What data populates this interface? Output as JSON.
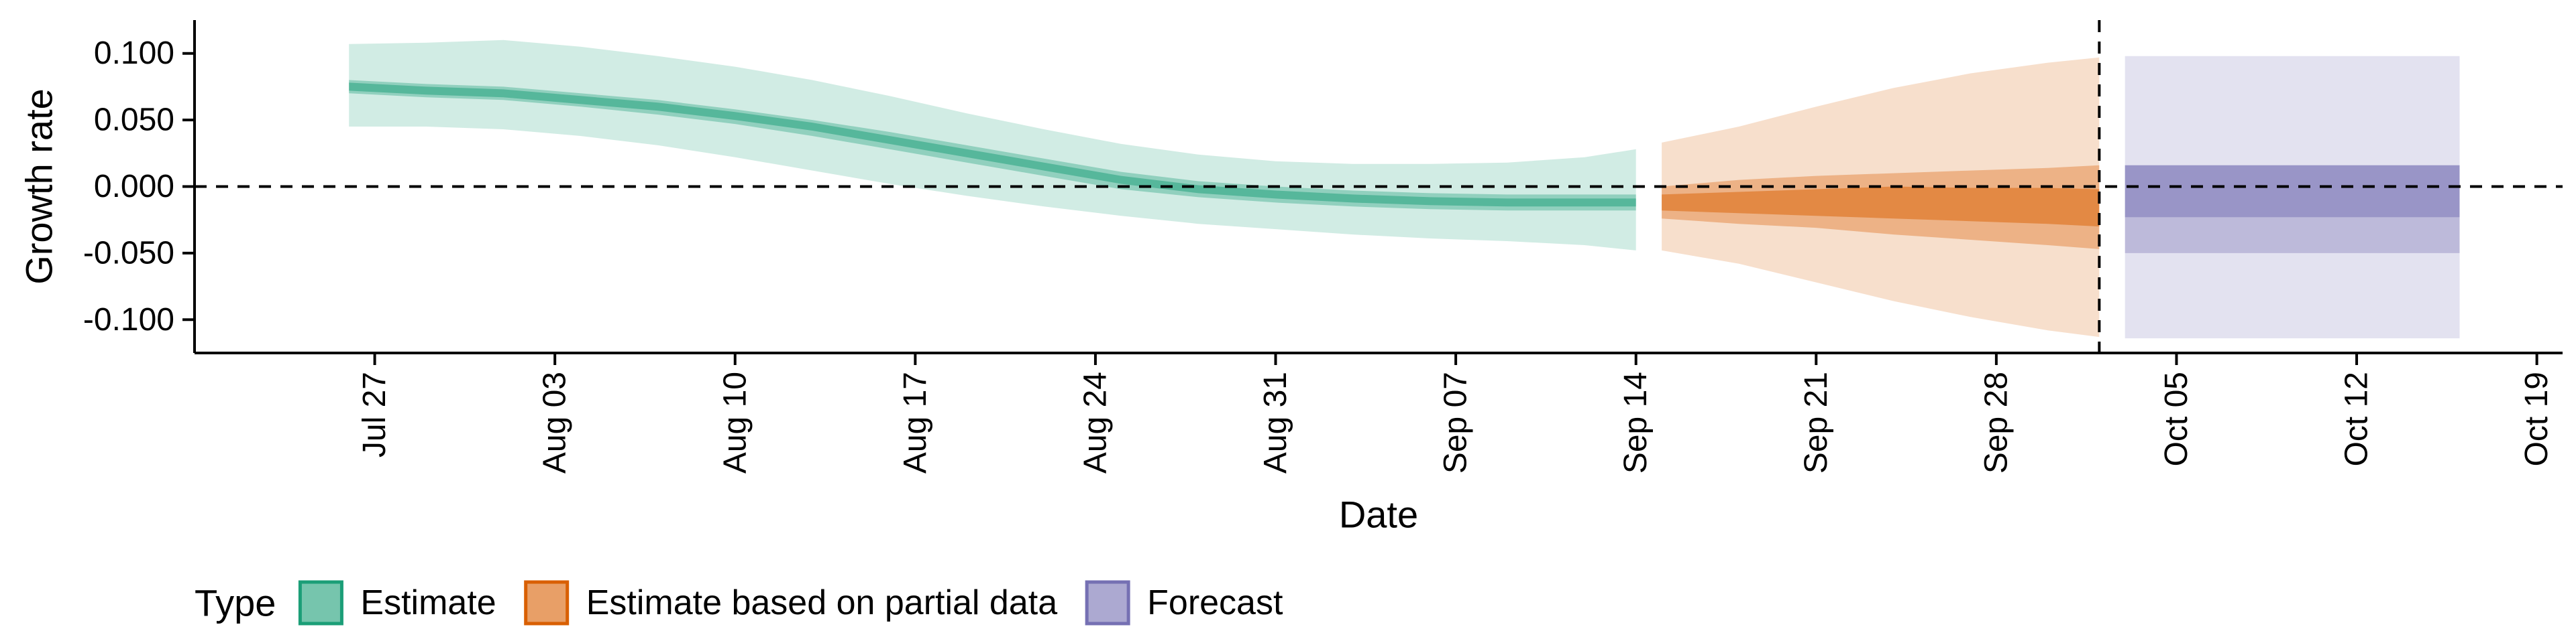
{
  "chart_data": {
    "type": "area",
    "xlabel": "Date",
    "ylabel": "Growth rate",
    "ylim": [
      -0.125,
      0.125
    ],
    "xlim": [
      "2020-07-20",
      "2020-10-20"
    ],
    "y_ticks": [
      0.1,
      0.05,
      0.0,
      -0.05,
      -0.1
    ],
    "y_tick_labels": [
      "0.100",
      "0.050",
      "0.000",
      "-0.050",
      "-0.100"
    ],
    "x_ticks": [
      "2020-07-27",
      "2020-08-03",
      "2020-08-10",
      "2020-08-17",
      "2020-08-24",
      "2020-08-31",
      "2020-09-07",
      "2020-09-14",
      "2020-09-21",
      "2020-09-28",
      "2020-10-05",
      "2020-10-12",
      "2020-10-19"
    ],
    "x_tick_labels": [
      "Jul 27",
      "Aug 03",
      "Aug 10",
      "Aug 17",
      "Aug 24",
      "Aug 31",
      "Sep 07",
      "Sep 14",
      "Sep 21",
      "Sep 28",
      "Oct 05",
      "Oct 12",
      "Oct 19"
    ],
    "reference_lines": {
      "horizontal_y": 0.0,
      "vertical_date": "2020-10-02"
    },
    "legend": {
      "title": "Type",
      "position": "bottom",
      "entries": [
        {
          "label": "Estimate",
          "color": "#1b9e77"
        },
        {
          "label": "Estimate based on partial data",
          "color": "#d95f02"
        },
        {
          "label": "Forecast",
          "color": "#7570b3"
        }
      ]
    },
    "series": [
      {
        "name": "Estimate",
        "color": "#1b9e77",
        "dates": [
          "2020-07-26",
          "2020-07-29",
          "2020-08-01",
          "2020-08-04",
          "2020-08-07",
          "2020-08-10",
          "2020-08-13",
          "2020-08-16",
          "2020-08-19",
          "2020-08-22",
          "2020-08-25",
          "2020-08-28",
          "2020-08-31",
          "2020-09-03",
          "2020-09-06",
          "2020-09-09",
          "2020-09-12",
          "2020-09-14"
        ],
        "median": [
          0.075,
          0.072,
          0.07,
          0.065,
          0.06,
          0.053,
          0.045,
          0.035,
          0.025,
          0.015,
          0.005,
          -0.002,
          -0.006,
          -0.009,
          -0.011,
          -0.012,
          -0.012,
          -0.012
        ],
        "lower_50": [
          0.07,
          0.067,
          0.065,
          0.06,
          0.054,
          0.047,
          0.038,
          0.028,
          0.018,
          0.008,
          -0.002,
          -0.008,
          -0.012,
          -0.015,
          -0.017,
          -0.018,
          -0.018,
          -0.018
        ],
        "upper_50": [
          0.08,
          0.077,
          0.075,
          0.07,
          0.065,
          0.058,
          0.05,
          0.041,
          0.031,
          0.021,
          0.011,
          0.004,
          0.0,
          -0.003,
          -0.005,
          -0.006,
          -0.006,
          -0.006
        ],
        "lower_90": [
          0.045,
          0.045,
          0.043,
          0.038,
          0.031,
          0.022,
          0.012,
          0.002,
          -0.007,
          -0.015,
          -0.022,
          -0.028,
          -0.032,
          -0.036,
          -0.039,
          -0.041,
          -0.044,
          -0.048
        ],
        "upper_90": [
          0.107,
          0.108,
          0.11,
          0.105,
          0.098,
          0.09,
          0.08,
          0.068,
          0.055,
          0.043,
          0.032,
          0.024,
          0.019,
          0.017,
          0.017,
          0.018,
          0.022,
          0.028
        ],
        "lower_20": [
          0.072,
          0.069,
          0.067,
          0.062,
          0.057,
          0.05,
          0.042,
          0.032,
          0.022,
          0.012,
          0.002,
          -0.005,
          -0.009,
          -0.012,
          -0.014,
          -0.015,
          -0.015,
          -0.015
        ],
        "upper_20": [
          0.078,
          0.075,
          0.073,
          0.068,
          0.063,
          0.056,
          0.048,
          0.038,
          0.028,
          0.018,
          0.008,
          0.001,
          -0.003,
          -0.006,
          -0.008,
          -0.009,
          -0.009,
          -0.009
        ]
      },
      {
        "name": "Estimate based on partial data",
        "color": "#d95f02",
        "dates": [
          "2020-09-15",
          "2020-09-18",
          "2020-09-21",
          "2020-09-24",
          "2020-09-27",
          "2020-09-30",
          "2020-10-02"
        ],
        "median": [
          -0.012,
          -0.012,
          -0.012,
          -0.012,
          -0.013,
          -0.014,
          -0.015
        ],
        "lower_50": [
          -0.024,
          -0.028,
          -0.031,
          -0.036,
          -0.04,
          -0.044,
          -0.047
        ],
        "upper_50": [
          0.0,
          0.005,
          0.008,
          0.01,
          0.012,
          0.014,
          0.016
        ],
        "lower_90": [
          -0.048,
          -0.058,
          -0.072,
          -0.086,
          -0.098,
          -0.108,
          -0.113
        ],
        "upper_90": [
          0.033,
          0.045,
          0.06,
          0.074,
          0.085,
          0.093,
          0.097
        ],
        "lower_20": [
          -0.018,
          -0.02,
          -0.022,
          -0.024,
          -0.026,
          -0.028,
          -0.03
        ],
        "upper_20": [
          -0.006,
          -0.004,
          -0.002,
          0.0,
          -0.001,
          -0.001,
          -0.002
        ]
      },
      {
        "name": "Forecast",
        "color": "#7570b3",
        "dates": [
          "2020-10-03",
          "2020-10-16"
        ],
        "median": [
          -0.003,
          -0.003
        ],
        "lower_50": [
          -0.05,
          -0.05
        ],
        "upper_50": [
          0.016,
          0.016
        ],
        "lower_90": [
          -0.114,
          -0.114
        ],
        "upper_90": [
          0.098,
          0.098
        ],
        "lower_20": [
          -0.023,
          -0.023
        ],
        "upper_20": [
          0.016,
          0.016
        ]
      }
    ]
  }
}
